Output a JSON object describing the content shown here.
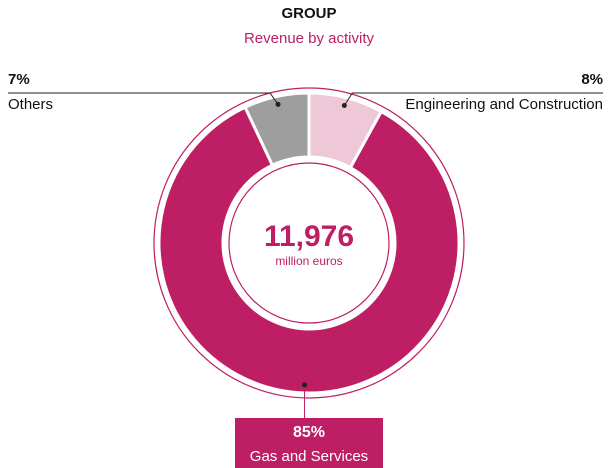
{
  "chart_data": {
    "type": "donut",
    "title": "GROUP",
    "subtitle": "Revenue by activity",
    "center_value": "11,976",
    "center_label": "million euros",
    "categories": [
      "Engineering and Construction",
      "Gas and Services",
      "Others"
    ],
    "values": [
      8,
      85,
      7
    ],
    "value_labels": [
      "8%",
      "85%",
      "7%"
    ],
    "colors": [
      "#efc8d8",
      "#be1e63",
      "#9e9e9e"
    ]
  }
}
